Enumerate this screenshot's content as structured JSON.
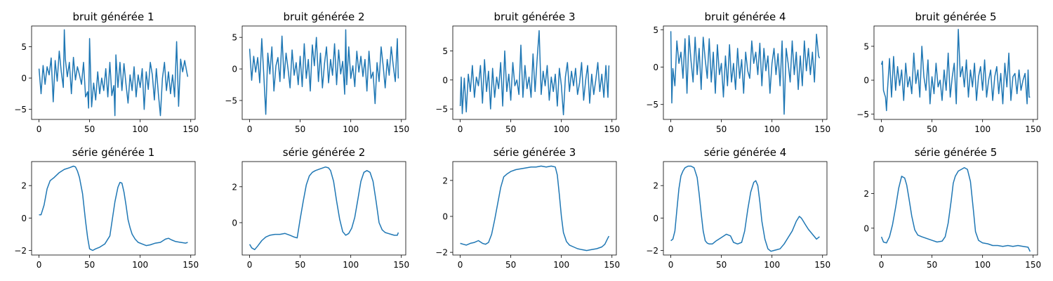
{
  "chart_data": [
    {
      "type": "line",
      "title": "bruit générée 1",
      "xlim": [
        -7.35,
        154.35
      ],
      "ylim": [
        -6.6,
        8.3
      ],
      "xticks": [
        0,
        50,
        100,
        150
      ],
      "yticks": [
        -5,
        0,
        5
      ],
      "color": "#1f77b4",
      "x": [
        0,
        2,
        4,
        6,
        8,
        10,
        12,
        14,
        16,
        18,
        20,
        22,
        24,
        25,
        26,
        28,
        30,
        32,
        34,
        36,
        38,
        40,
        42,
        44,
        46,
        48,
        49,
        50,
        52,
        54,
        56,
        58,
        60,
        62,
        64,
        66,
        68,
        70,
        72,
        74,
        75,
        76,
        78,
        80,
        82,
        84,
        86,
        88,
        90,
        92,
        94,
        96,
        98,
        100,
        102,
        104,
        106,
        108,
        110,
        112,
        114,
        116,
        118,
        120,
        122,
        124,
        126,
        128,
        130,
        132,
        134,
        136,
        138,
        140,
        142,
        144,
        146,
        147
      ],
      "y": [
        1.5,
        -2.5,
        2.0,
        -1.0,
        1.8,
        0.5,
        3.2,
        -3.8,
        2.8,
        -0.5,
        4.3,
        1.0,
        -1.5,
        7.7,
        3.0,
        0.2,
        2.5,
        -2.5,
        3.3,
        -0.3,
        1.8,
        0.5,
        -1.0,
        2.5,
        -3.0,
        -2.2,
        -4.8,
        6.3,
        -4.6,
        -0.8,
        -3.5,
        1.0,
        -2.5,
        0.0,
        -2.0,
        1.5,
        -3.0,
        2.5,
        -2.8,
        -1.2,
        -6.0,
        3.7,
        -1.5,
        2.5,
        -2.0,
        2.3,
        -1.0,
        -4.0,
        0.5,
        -2.0,
        1.8,
        -3.0,
        0.5,
        -1.5,
        1.5,
        -5.0,
        1.0,
        -1.8,
        2.5,
        0.5,
        -3.5,
        1.5,
        -2.5,
        -6.0,
        0.0,
        2.5,
        -2.0,
        1.0,
        -2.5,
        0.5,
        -3.0,
        5.8,
        -4.5,
        3.0,
        1.0,
        2.8,
        1.0,
        0.2
      ]
    },
    {
      "type": "line",
      "title": "bruit générée 2",
      "xlim": [
        -7.35,
        154.35
      ],
      "ylim": [
        -8.0,
        6.8
      ],
      "xticks": [
        0,
        50,
        100,
        150
      ],
      "yticks": [
        -5,
        0,
        5
      ],
      "color": "#1f77b4",
      "x": [
        0,
        2,
        4,
        6,
        8,
        10,
        12,
        14,
        16,
        18,
        20,
        22,
        24,
        26,
        28,
        30,
        32,
        34,
        36,
        38,
        40,
        42,
        44,
        46,
        48,
        50,
        52,
        54,
        56,
        58,
        60,
        62,
        64,
        66,
        68,
        70,
        72,
        74,
        76,
        78,
        80,
        82,
        84,
        86,
        88,
        90,
        92,
        94,
        95,
        96,
        98,
        100,
        102,
        104,
        106,
        108,
        110,
        112,
        114,
        116,
        118,
        120,
        122,
        124,
        126,
        128,
        130,
        132,
        134,
        136,
        138,
        140,
        142,
        144,
        146,
        147
      ],
      "y": [
        3.2,
        -1.8,
        2.0,
        -0.5,
        1.8,
        -2.2,
        4.8,
        -1.0,
        -7.2,
        2.5,
        -0.8,
        3.5,
        -3.5,
        0.5,
        1.8,
        -2.0,
        5.2,
        -1.5,
        2.5,
        0.0,
        -3.0,
        3.0,
        -1.0,
        1.0,
        -2.5,
        2.0,
        -2.8,
        4.0,
        -1.5,
        1.5,
        -3.5,
        3.8,
        0.5,
        5.0,
        -2.0,
        2.5,
        -3.0,
        0.8,
        3.5,
        -2.2,
        1.5,
        -1.0,
        4.0,
        -2.5,
        3.0,
        -0.8,
        1.2,
        -4.0,
        6.2,
        -2.5,
        3.5,
        -1.5,
        0.5,
        -2.8,
        2.8,
        -0.5,
        2.0,
        -1.2,
        1.5,
        -3.5,
        2.8,
        -1.5,
        -0.5,
        -5.5,
        1.0,
        -2.0,
        3.5,
        0.5,
        -3.0,
        1.5,
        -1.0,
        3.5,
        0.5,
        -2.0,
        4.8,
        -1.5
      ]
    },
    {
      "type": "line",
      "title": "bruit générée 3",
      "xlim": [
        -7.35,
        154.35
      ],
      "ylim": [
        -6.8,
        9.3
      ],
      "xticks": [
        0,
        50,
        100,
        150
      ],
      "yticks": [
        -5,
        0,
        5
      ],
      "color": "#1f77b4",
      "x": [
        0,
        1,
        2,
        4,
        6,
        8,
        10,
        12,
        14,
        16,
        18,
        20,
        22,
        24,
        26,
        28,
        30,
        32,
        34,
        36,
        38,
        40,
        42,
        44,
        46,
        48,
        50,
        52,
        54,
        56,
        58,
        60,
        62,
        64,
        66,
        68,
        70,
        72,
        74,
        76,
        78,
        80,
        82,
        84,
        86,
        88,
        90,
        92,
        94,
        96,
        98,
        100,
        102,
        104,
        106,
        108,
        110,
        112,
        114,
        116,
        118,
        120,
        122,
        124,
        126,
        128,
        130,
        132,
        134,
        136,
        138,
        140,
        142,
        144,
        146,
        147
      ],
      "y": [
        -4.5,
        0.5,
        -5.8,
        0.3,
        -5.5,
        1.0,
        -2.0,
        2.5,
        -3.0,
        0.5,
        -1.0,
        2.5,
        -4.0,
        3.5,
        -2.0,
        1.5,
        -5.0,
        2.0,
        -3.0,
        0.5,
        -1.5,
        3.0,
        -4.5,
        5.0,
        -2.0,
        1.0,
        -3.5,
        3.0,
        -1.0,
        0.0,
        -2.5,
        6.0,
        -3.0,
        2.5,
        -1.5,
        0.5,
        -3.0,
        4.5,
        -2.0,
        3.5,
        8.5,
        -2.5,
        1.5,
        -1.0,
        2.5,
        -3.5,
        0.5,
        -2.0,
        1.0,
        -4.5,
        2.0,
        -1.0,
        -6.0,
        0.5,
        3.0,
        -2.0,
        1.5,
        -1.0,
        2.0,
        -2.5,
        -0.5,
        3.0,
        -3.5,
        0.0,
        2.5,
        -4.0,
        1.0,
        -2.5,
        0.0,
        3.0,
        -2.0,
        1.0,
        -3.0,
        2.5,
        -3.0,
        2.5
      ]
    },
    {
      "type": "line",
      "title": "bruit générée 4",
      "xlim": [
        -7.35,
        154.35
      ],
      "ylim": [
        -7.0,
        5.5
      ],
      "xticks": [
        0,
        50,
        100,
        150
      ],
      "yticks": [
        -5,
        0,
        5
      ],
      "color": "#1f77b4",
      "x": [
        0,
        1,
        2,
        4,
        6,
        8,
        10,
        12,
        14,
        16,
        18,
        20,
        22,
        24,
        26,
        28,
        30,
        32,
        34,
        36,
        38,
        40,
        42,
        44,
        46,
        48,
        50,
        52,
        54,
        56,
        58,
        60,
        62,
        64,
        66,
        68,
        70,
        72,
        74,
        76,
        78,
        80,
        82,
        84,
        86,
        88,
        90,
        92,
        94,
        96,
        98,
        100,
        102,
        104,
        106,
        108,
        110,
        112,
        114,
        116,
        118,
        120,
        122,
        124,
        126,
        128,
        130,
        132,
        134,
        136,
        138,
        140,
        142,
        144,
        146,
        147
      ],
      "y": [
        4.8,
        -4.8,
        -0.2,
        -2.5,
        3.5,
        0.5,
        2.0,
        -1.5,
        3.8,
        -3.5,
        4.2,
        0.8,
        -2.0,
        4.0,
        -1.0,
        2.5,
        -3.0,
        4.0,
        1.0,
        -1.5,
        3.8,
        -2.0,
        2.0,
        -3.5,
        3.0,
        -1.0,
        0.5,
        -4.0,
        1.5,
        -2.5,
        3.0,
        -2.0,
        0.5,
        -3.0,
        2.5,
        -1.5,
        1.0,
        -3.5,
        2.0,
        -0.5,
        -1.5,
        3.5,
        0.5,
        2.0,
        -1.0,
        3.2,
        -2.5,
        2.5,
        -0.5,
        1.5,
        -3.5,
        0.5,
        2.5,
        -1.0,
        1.8,
        -2.5,
        3.5,
        -6.3,
        2.5,
        0.5,
        -2.0,
        3.5,
        -1.0,
        2.0,
        -3.0,
        1.5,
        -2.5,
        3.5,
        -0.5,
        2.5,
        -1.0,
        2.0,
        -2.0,
        4.4,
        1.5,
        1.2
      ]
    },
    {
      "type": "line",
      "title": "bruit générée 5",
      "xlim": [
        -7.35,
        154.35
      ],
      "ylim": [
        -5.8,
        8.0
      ],
      "xticks": [
        0,
        50,
        100,
        150
      ],
      "yticks": [
        -5,
        0,
        5
      ],
      "color": "#1f77b4",
      "x": [
        0,
        1,
        2,
        3,
        4,
        5,
        6,
        8,
        10,
        12,
        14,
        16,
        18,
        20,
        22,
        24,
        26,
        28,
        30,
        32,
        34,
        36,
        38,
        40,
        42,
        44,
        46,
        48,
        50,
        52,
        54,
        56,
        58,
        60,
        62,
        64,
        66,
        68,
        70,
        72,
        74,
        76,
        78,
        80,
        82,
        84,
        86,
        88,
        90,
        92,
        94,
        96,
        98,
        100,
        102,
        104,
        106,
        108,
        110,
        112,
        114,
        116,
        118,
        120,
        122,
        124,
        126,
        128,
        130,
        132,
        134,
        136,
        138,
        140,
        142,
        144,
        145,
        146,
        147
      ],
      "y": [
        2.3,
        2.8,
        -1.5,
        -2.0,
        -2.5,
        -4.5,
        -1.5,
        3.2,
        -2.5,
        3.5,
        -1.5,
        2.0,
        -0.8,
        1.5,
        -3.0,
        2.5,
        -1.0,
        0.5,
        -2.0,
        4.0,
        -0.5,
        1.5,
        -2.5,
        5.0,
        0.5,
        -1.5,
        3.0,
        -3.5,
        0.5,
        -2.0,
        2.5,
        -1.0,
        0.0,
        -3.0,
        1.5,
        -1.5,
        4.0,
        -2.5,
        0.5,
        2.5,
        -3.5,
        7.5,
        0.5,
        2.0,
        -1.0,
        3.0,
        -2.5,
        1.5,
        -1.0,
        2.5,
        -3.0,
        0.5,
        2.0,
        -1.5,
        3.0,
        -2.5,
        0.0,
        1.5,
        -3.0,
        0.5,
        2.0,
        -2.0,
        1.0,
        -3.5,
        2.5,
        -1.0,
        4.0,
        -3.0,
        0.5,
        1.0,
        -2.0,
        1.5,
        -1.5,
        0.0,
        1.0,
        -3.5,
        1.5,
        -2.5,
        -2.5
      ]
    },
    {
      "type": "line",
      "title": "série générée 1",
      "xlim": [
        -7.35,
        154.35
      ],
      "ylim": [
        -2.28,
        3.48
      ],
      "xticks": [
        0,
        50,
        100,
        150
      ],
      "yticks": [
        -2,
        0,
        2
      ],
      "color": "#1f77b4",
      "x": [
        0,
        2,
        5,
        8,
        11,
        15,
        20,
        25,
        30,
        34,
        36,
        38,
        40,
        43,
        46,
        48,
        50,
        53,
        56,
        60,
        65,
        70,
        75,
        78,
        80,
        82,
        84,
        86,
        88,
        90,
        92,
        95,
        98,
        102,
        106,
        110,
        115,
        120,
        125,
        128,
        131,
        135,
        140,
        145,
        147
      ],
      "y": [
        0.2,
        0.2,
        0.8,
        1.8,
        2.3,
        2.5,
        2.8,
        3.0,
        3.1,
        3.2,
        3.15,
        2.9,
        2.5,
        1.5,
        -0.2,
        -1.2,
        -1.9,
        -2.0,
        -1.9,
        -1.8,
        -1.6,
        -1.1,
        1.0,
        1.9,
        2.2,
        2.15,
        1.6,
        0.8,
        -0.1,
        -0.6,
        -1.0,
        -1.3,
        -1.5,
        -1.6,
        -1.7,
        -1.65,
        -1.55,
        -1.5,
        -1.3,
        -1.25,
        -1.35,
        -1.45,
        -1.5,
        -1.55,
        -1.5
      ]
    },
    {
      "type": "line",
      "title": "série générée 2",
      "xlim": [
        -7.35,
        154.35
      ],
      "ylim": [
        -1.8,
        3.4
      ],
      "xticks": [
        0,
        50,
        100,
        150
      ],
      "yticks": [
        0,
        2
      ],
      "color": "#1f77b4",
      "x": [
        0,
        2,
        5,
        8,
        12,
        16,
        20,
        25,
        30,
        35,
        40,
        44,
        47,
        50,
        53,
        56,
        59,
        62,
        65,
        70,
        75,
        78,
        80,
        83,
        86,
        89,
        92,
        95,
        98,
        101,
        104,
        107,
        110,
        113,
        116,
        119,
        122,
        125,
        128,
        131,
        134,
        137,
        140,
        143,
        146,
        147
      ],
      "y": [
        -1.2,
        -1.4,
        -1.5,
        -1.3,
        -1.0,
        -0.8,
        -0.7,
        -0.65,
        -0.65,
        -0.6,
        -0.7,
        -0.8,
        -0.85,
        0.2,
        1.2,
        2.1,
        2.6,
        2.8,
        2.9,
        3.0,
        3.1,
        3.05,
        2.9,
        2.3,
        1.2,
        0.2,
        -0.5,
        -0.7,
        -0.6,
        -0.3,
        0.3,
        1.3,
        2.3,
        2.8,
        2.9,
        2.8,
        2.3,
        1.2,
        0.0,
        -0.4,
        -0.55,
        -0.6,
        -0.65,
        -0.7,
        -0.7,
        -0.55
      ]
    },
    {
      "type": "line",
      "title": "série générée 3",
      "xlim": [
        -7.35,
        154.35
      ],
      "ylim": [
        -2.15,
        3.05
      ],
      "xticks": [
        0,
        50,
        100,
        150
      ],
      "yticks": [
        -2,
        0,
        2
      ],
      "color": "#1f77b4",
      "x": [
        0,
        3,
        6,
        10,
        14,
        18,
        22,
        25,
        28,
        31,
        34,
        37,
        40,
        43,
        46,
        50,
        55,
        60,
        65,
        70,
        75,
        80,
        85,
        90,
        94,
        96,
        98,
        100,
        102,
        105,
        108,
        112,
        116,
        120,
        125,
        130,
        135,
        140,
        143,
        146,
        147
      ],
      "y": [
        -1.5,
        -1.55,
        -1.6,
        -1.5,
        -1.45,
        -1.35,
        -1.5,
        -1.55,
        -1.45,
        -1.0,
        -0.2,
        0.7,
        1.6,
        2.2,
        2.35,
        2.5,
        2.6,
        2.65,
        2.7,
        2.75,
        2.75,
        2.8,
        2.75,
        2.8,
        2.75,
        2.3,
        1.2,
        0.0,
        -0.9,
        -1.4,
        -1.6,
        -1.7,
        -1.8,
        -1.85,
        -1.9,
        -1.85,
        -1.8,
        -1.7,
        -1.55,
        -1.2,
        -1.1
      ]
    },
    {
      "type": "line",
      "title": "série générée 4",
      "xlim": [
        -7.35,
        154.35
      ],
      "ylim": [
        -2.28,
        3.48
      ],
      "xticks": [
        0,
        50,
        100,
        150
      ],
      "yticks": [
        -2,
        0,
        2
      ],
      "color": "#1f77b4",
      "x": [
        0,
        2,
        4,
        6,
        8,
        10,
        12,
        14,
        17,
        20,
        23,
        26,
        28,
        30,
        32,
        34,
        36,
        38,
        41,
        45,
        50,
        55,
        59,
        62,
        66,
        70,
        73,
        76,
        79,
        82,
        84,
        86,
        88,
        90,
        93,
        96,
        99,
        102,
        105,
        108,
        112,
        116,
        120,
        124,
        127,
        129,
        131,
        133,
        136,
        140,
        144,
        147
      ],
      "y": [
        -1.4,
        -1.3,
        -0.8,
        0.5,
        1.8,
        2.6,
        2.9,
        3.1,
        3.2,
        3.2,
        3.1,
        2.5,
        1.5,
        0.3,
        -0.8,
        -1.4,
        -1.55,
        -1.6,
        -1.6,
        -1.4,
        -1.2,
        -1.0,
        -1.1,
        -1.5,
        -1.6,
        -1.5,
        -0.8,
        0.5,
        1.6,
        2.2,
        2.3,
        2.0,
        1.0,
        -0.2,
        -1.3,
        -1.9,
        -2.05,
        -2.0,
        -1.95,
        -1.9,
        -1.6,
        -1.2,
        -0.8,
        -0.2,
        0.1,
        0.0,
        -0.2,
        -0.4,
        -0.7,
        -1.0,
        -1.3,
        -1.15
      ]
    },
    {
      "type": "line",
      "title": "série générée 5",
      "xlim": [
        -7.35,
        154.35
      ],
      "ylim": [
        -1.55,
        3.85
      ],
      "xticks": [
        0,
        50,
        100,
        150
      ],
      "yticks": [
        0,
        2
      ],
      "color": "#1f77b4",
      "x": [
        0,
        2,
        5,
        8,
        11,
        14,
        17,
        20,
        23,
        25,
        27,
        30,
        33,
        36,
        40,
        45,
        50,
        55,
        60,
        63,
        66,
        69,
        71,
        73,
        76,
        79,
        82,
        85,
        88,
        91,
        93,
        96,
        100,
        105,
        110,
        115,
        120,
        125,
        130,
        135,
        140,
        145,
        147
      ],
      "y": [
        -0.5,
        -0.8,
        -0.85,
        -0.5,
        0.2,
        1.2,
        2.3,
        3.0,
        2.9,
        2.5,
        1.8,
        0.7,
        -0.1,
        -0.4,
        -0.5,
        -0.6,
        -0.7,
        -0.8,
        -0.75,
        -0.5,
        0.3,
        1.6,
        2.6,
        3.0,
        3.3,
        3.4,
        3.5,
        3.4,
        2.7,
        1.0,
        -0.2,
        -0.7,
        -0.85,
        -0.9,
        -1.0,
        -1.0,
        -1.05,
        -1.0,
        -1.05,
        -1.0,
        -1.05,
        -1.1,
        -1.35
      ]
    }
  ]
}
